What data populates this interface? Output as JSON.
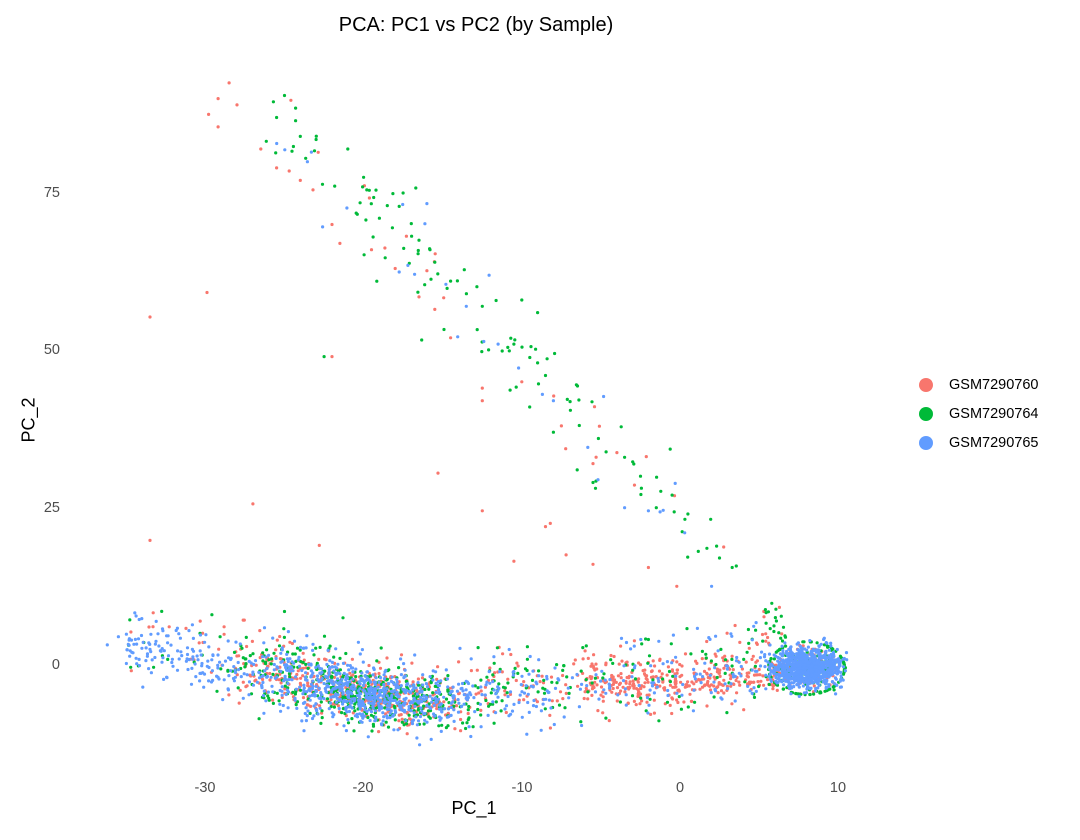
{
  "chart_data": {
    "type": "scatter",
    "title": "PCA: PC1 vs PC2 (by Sample)",
    "xlabel": "PC_1",
    "ylabel": "PC_2",
    "xlim": [
      -36.5,
      10.5
    ],
    "ylim": [
      -13,
      95
    ],
    "x_ticks": [
      -30,
      -20,
      -10,
      0,
      10
    ],
    "y_ticks": [
      0,
      25,
      50,
      75
    ],
    "grid": false,
    "legend_position": "right",
    "legend": [
      {
        "name": "GSM7290760",
        "color": "#F8766D"
      },
      {
        "name": "GSM7290764",
        "color": "#00BA38"
      },
      {
        "name": "GSM7290765",
        "color": "#619CFF"
      }
    ],
    "clusters": [
      {
        "name": "main-band",
        "description": "dense horizontal band of cells near PC_2 ~ -5 to 5 spanning PC_1 -36 to 10",
        "x_range": [
          -36,
          10.5
        ],
        "y_range": [
          -12,
          10
        ]
      },
      {
        "name": "right-dense-cluster",
        "description": "very dense mostly GSM7290765 cluster",
        "center": [
          8,
          -1
        ],
        "x_range": [
          5,
          10.5
        ],
        "y_range": [
          -5,
          4
        ]
      },
      {
        "name": "diagonal-arm",
        "description": "sparse diagonal arm from top-left to lower-right, mostly GSM7290764 and GSM7290760",
        "from": [
          -28,
          92
        ],
        "to": [
          3,
          15
        ]
      }
    ],
    "series": [
      {
        "name": "GSM7290760",
        "color": "#F8766D",
        "sample_points": [
          [
            -28.5,
            92.5
          ],
          [
            -29.2,
            90.0
          ],
          [
            -28.0,
            89.0
          ],
          [
            -29.8,
            87.5
          ],
          [
            -29.2,
            85.5
          ],
          [
            -26.5,
            82.0
          ],
          [
            -25.5,
            79.0
          ],
          [
            -24.7,
            78.5
          ],
          [
            -24.0,
            77.0
          ],
          [
            -23.2,
            75.5
          ],
          [
            -22.0,
            70.0
          ],
          [
            -21.5,
            67.0
          ],
          [
            -19.5,
            66.0
          ],
          [
            -18.0,
            63.0
          ],
          [
            -16.5,
            58.5
          ],
          [
            -15.5,
            56.5
          ],
          [
            -14.5,
            52.0
          ],
          [
            -12.5,
            44.0
          ],
          [
            -12.5,
            42.0
          ],
          [
            -10.0,
            45.0
          ],
          [
            -7.5,
            38.0
          ],
          [
            -5.5,
            32.0
          ],
          [
            -29.9,
            59.2
          ],
          [
            -33.5,
            55.3
          ],
          [
            -22.0,
            49.0
          ],
          [
            -15.3,
            30.5
          ],
          [
            -8.5,
            22.0
          ],
          [
            -8.2,
            22.5
          ],
          [
            -7.2,
            17.5
          ],
          [
            -5.5,
            16.0
          ],
          [
            -2.0,
            15.5
          ],
          [
            -0.2,
            12.5
          ],
          [
            -12.5,
            24.5
          ],
          [
            -10.5,
            16.5
          ],
          [
            -27.0,
            25.6
          ],
          [
            -33.5,
            19.8
          ],
          [
            -22.8,
            19.0
          ],
          [
            -33.3,
            8.3
          ],
          [
            5.3,
            8.5
          ]
        ]
      },
      {
        "name": "GSM7290764",
        "color": "#00BA38",
        "sample_points": [
          [
            -25.0,
            90.5
          ],
          [
            -25.7,
            89.5
          ],
          [
            -24.3,
            88.5
          ],
          [
            -25.5,
            87.0
          ],
          [
            -24.3,
            86.5
          ],
          [
            -24.0,
            84.0
          ],
          [
            -23.0,
            83.5
          ],
          [
            -21.0,
            82.0
          ],
          [
            -20.0,
            77.5
          ],
          [
            -19.8,
            75.5
          ],
          [
            -17.5,
            75.0
          ],
          [
            -16.7,
            75.8
          ],
          [
            -18.5,
            73.0
          ],
          [
            -19.0,
            71.0
          ],
          [
            -16.5,
            67.5
          ],
          [
            -15.8,
            66.0
          ],
          [
            -15.5,
            64.0
          ],
          [
            -14.5,
            61.0
          ],
          [
            -13.5,
            59.0
          ],
          [
            -12.5,
            57.0
          ],
          [
            -10.0,
            58.0
          ],
          [
            -9.0,
            56.0
          ],
          [
            -10.5,
            51.0
          ],
          [
            -9.0,
            48.0
          ],
          [
            -8.5,
            46.0
          ],
          [
            -9.5,
            41.0
          ],
          [
            -8.0,
            37.0
          ],
          [
            -6.5,
            31.0
          ],
          [
            -5.5,
            29.0
          ],
          [
            -3.5,
            33.0
          ],
          [
            -2.5,
            30.0
          ],
          [
            -1.5,
            25.0
          ],
          [
            -0.5,
            27.0
          ],
          [
            0.5,
            24.0
          ],
          [
            2.5,
            17.0
          ],
          [
            3.3,
            15.5
          ],
          [
            -22.5,
            49.0
          ],
          [
            -21.3,
            7.5
          ],
          [
            -25.0,
            8.5
          ],
          [
            5.8,
            9.8
          ],
          [
            5.4,
            8.8
          ]
        ]
      },
      {
        "name": "GSM7290765",
        "color": "#619CFF",
        "sample_points": [
          [
            -23.3,
            81.5
          ],
          [
            -17.2,
            63.5
          ],
          [
            -14.8,
            60.5
          ],
          [
            -11.5,
            51.0
          ],
          [
            -10.2,
            47.2
          ],
          [
            -8.7,
            43.0
          ],
          [
            -8.0,
            42.0
          ],
          [
            -3.5,
            25.0
          ],
          [
            -2.0,
            24.5
          ],
          [
            0.3,
            21.0
          ],
          [
            2.0,
            12.5
          ],
          [
            -35.5,
            4.5
          ],
          [
            -36.2,
            3.2
          ],
          [
            -33.5,
            2.5
          ],
          [
            -31.5,
            1.5
          ],
          [
            -18.5,
            -7.0
          ],
          [
            -16.0,
            -6.5
          ],
          [
            -14.0,
            -7.5
          ],
          [
            8.0,
            -0.5
          ],
          [
            9.0,
            0.5
          ],
          [
            7.5,
            1.0
          ],
          [
            8.5,
            -2.0
          ],
          [
            10.2,
            -3.5
          ]
        ]
      }
    ],
    "approx_total_cells": 3600
  }
}
